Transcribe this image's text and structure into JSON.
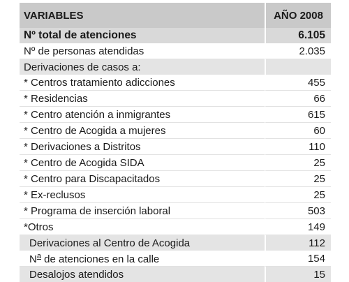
{
  "table": {
    "header": {
      "variables": "VARIABLES",
      "year": "AÑO 2008"
    },
    "total": {
      "label": "Nº total de atenciones",
      "value": "6.105"
    },
    "persons": {
      "label": "Nº de personas atendidas",
      "value": "2.035"
    },
    "section_label": "Derivaciones de casos a:",
    "items": [
      {
        "label": "* Centros tratamiento adicciones",
        "value": "455"
      },
      {
        "label": "* Residencias",
        "value": "66"
      },
      {
        "label": "* Centro atención a inmigrantes",
        "value": "615"
      },
      {
        "label": "* Centro de Acogida a mujeres",
        "value": "60"
      },
      {
        "label": "* Derivaciones a Distritos",
        "value": "110"
      },
      {
        "label": "* Centro de Acogida SIDA",
        "value": "25"
      },
      {
        "label": "* Centro para Discapacitados",
        "value": "25"
      },
      {
        "label": "* Ex-reclusos",
        "value": "25"
      },
      {
        "label": "* Programa de inserción laboral",
        "value": "503"
      },
      {
        "label": "*Otros",
        "value": "149"
      }
    ],
    "acogida": {
      "label": "Derivaciones al Centro de Acogida",
      "value": "112"
    },
    "calle": {
      "label_n": "N",
      "label_sup": "a",
      "label_rest": " de atenciones en la calle",
      "value": "154"
    },
    "desalojos": {
      "label": "Desalojos atendidos",
      "value": "15"
    }
  }
}
